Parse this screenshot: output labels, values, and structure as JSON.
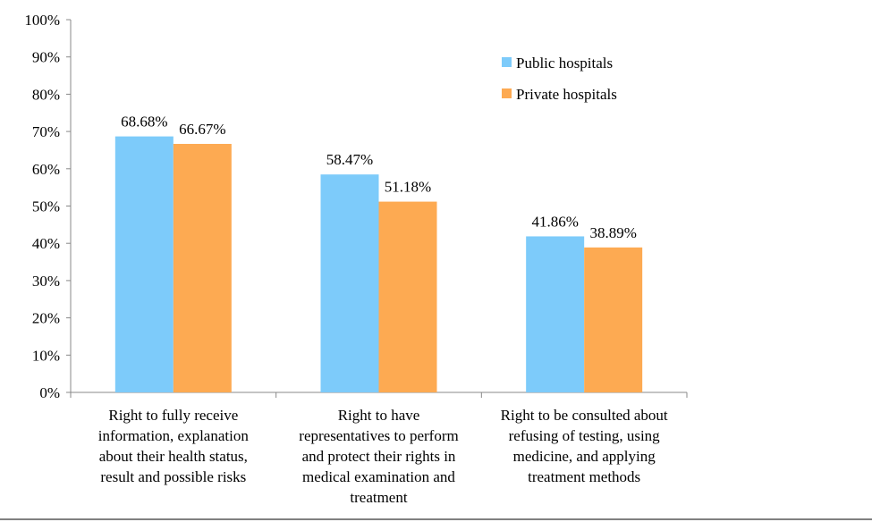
{
  "chart_data": {
    "type": "bar",
    "categories": [
      [
        "Right to fully receive",
        "information, explanation",
        "about their health status,",
        "result and possible risks"
      ],
      [
        "Right to have",
        "representatives to perform",
        "and protect their rights  in",
        "medical examination and",
        "treatment"
      ],
      [
        "Right to be consulted about",
        "refusing of testing, using",
        "medicine, and applying",
        "treatment methods"
      ]
    ],
    "series": [
      {
        "name": "Public hospitals",
        "color": "#7DCBFA",
        "values": [
          68.68,
          58.47,
          41.86
        ],
        "labels": [
          "68.68%",
          "58.47%",
          "41.86%"
        ]
      },
      {
        "name": "Private hospitals",
        "color": "#FDAA52",
        "values": [
          66.67,
          51.18,
          38.89
        ],
        "labels": [
          "66.67%",
          "51.18%",
          "38.89%"
        ]
      }
    ],
    "ylim": [
      0,
      100
    ],
    "yticks": [
      "0%",
      "10%",
      "20%",
      "30%",
      "40%",
      "50%",
      "60%",
      "70%",
      "80%",
      "90%",
      "100%"
    ],
    "title": "",
    "xlabel": "",
    "ylabel": "",
    "grid": false,
    "legend": "top-right"
  }
}
